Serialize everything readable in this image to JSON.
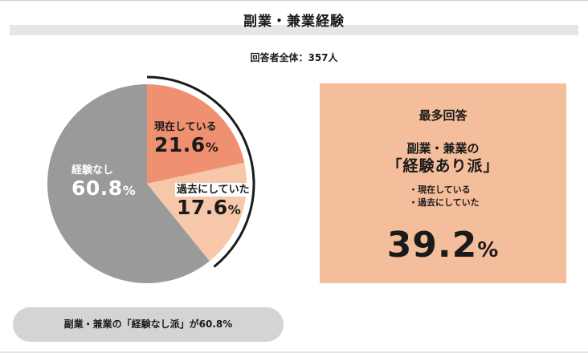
{
  "header": {
    "title": "副業・兼業経験",
    "respondents": "回答者全体：357人"
  },
  "chart_data": {
    "type": "pie",
    "title": "副業・兼業経験",
    "categories": [
      "現在している",
      "過去にしていた",
      "経験なし"
    ],
    "values": [
      21.6,
      17.6,
      60.8
    ],
    "value_labels": [
      "21.6",
      "17.6",
      "60.8"
    ],
    "unit": "%",
    "colors": [
      "#ef9170",
      "#f6c7a9",
      "#9a9a9a"
    ],
    "highlighted_group": [
      "現在している",
      "過去にしていた"
    ],
    "highlight_bracket_color": "#1a1a1a"
  },
  "panel": {
    "heading": "最多回答",
    "subheading": "副業・兼業の",
    "type_label": "「経験あり派」",
    "items": [
      "・現在している",
      "・過去にしていた"
    ],
    "total_value": "39.2",
    "total_unit": "%",
    "background": "#f4bd9b"
  },
  "footer": {
    "summary": "副業・兼業の「経験なし派」が60.8%"
  }
}
